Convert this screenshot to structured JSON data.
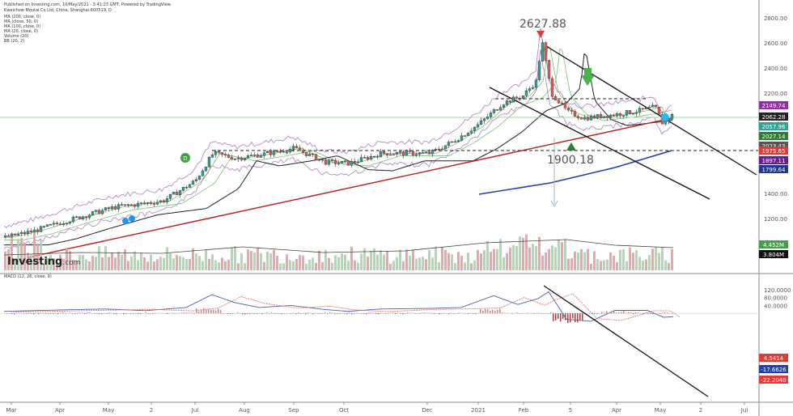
{
  "header": {
    "line1": "Published on Investing.com, 10/May/2021 - 3:41:23 GMT, Powered by TradingView.",
    "line2": "Kweichow Moutai Co Ltd, China, Shanghai:600519, D",
    "legend": [
      "MA (200, close, 0)",
      "MA (close, 50, 0)",
      "MA (100, close, 0)",
      "MA (20, close, 0)",
      "Volume (20)",
      "BB (20, 2)"
    ]
  },
  "logo": {
    "name": "Investing",
    "suffix": ".com"
  },
  "chart_data": [
    {
      "type": "candlestick",
      "ylim": [
        1000,
        2800
      ],
      "y_ticks": [
        "2800.00",
        "2600.00",
        "2400.00",
        "2200.00",
        "1600.00",
        "1400.00",
        "1200.00"
      ],
      "annotations": [
        "2627.88",
        "1900.18"
      ],
      "price_badges": [
        {
          "value": "2149.74",
          "color": "#9c27b0"
        },
        {
          "value": "2062.28",
          "color": "#222222"
        },
        {
          "value": "2057.96",
          "color": "#26a69a"
        },
        {
          "value": "2027.14",
          "color": "#2e7d32"
        },
        {
          "value": "2023.43",
          "color": "#555555"
        },
        {
          "value": "1975.65",
          "color": "#e53935"
        },
        {
          "value": "1897.11",
          "color": "#6a1b9a"
        },
        {
          "value": "1799.64",
          "color": "#1e3a8a"
        }
      ],
      "volume_badges": [
        {
          "value": "4.452M",
          "color": "#43a047"
        },
        {
          "value": "3.804M",
          "color": "#111111"
        }
      ],
      "series_colors": {
        "up": "#26a69a",
        "down": "#ef5350",
        "ma200": "#1e40af",
        "ma100": "#222222",
        "trend": "#b71c1c",
        "bb": "#8e44ad"
      },
      "x_ticks": [
        "Mar",
        "Apr",
        "May",
        "2",
        "Jul",
        "Aug",
        "Sep",
        "Oct",
        "Dec",
        "2021",
        "Feb",
        "5",
        "Apr",
        "May",
        "2",
        "Jul"
      ]
    },
    {
      "type": "macd",
      "label": "MACD (12, 26, close, 9)",
      "y_ticks": [
        "120.0000",
        "80.0000",
        "40.0000"
      ],
      "badges": [
        {
          "value": "4.5414",
          "color": "#e53935"
        },
        {
          "value": "-17.6626",
          "color": "#1e40af"
        },
        {
          "value": "-22.2040",
          "color": "#e53935"
        }
      ]
    }
  ]
}
